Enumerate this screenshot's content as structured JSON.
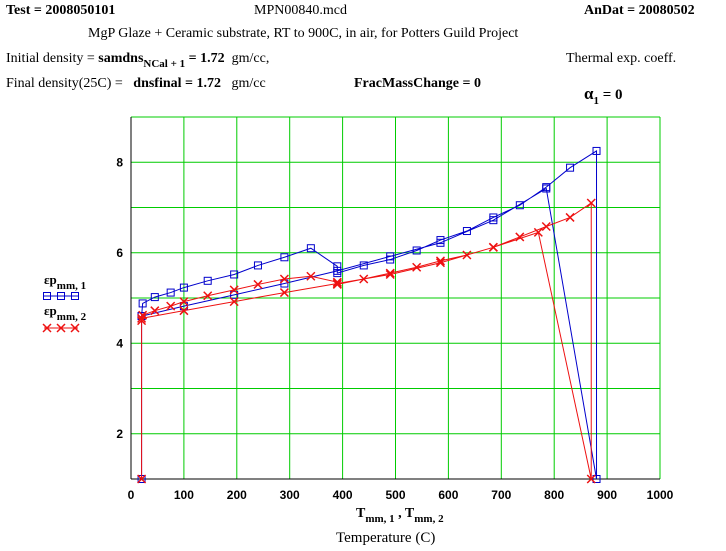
{
  "header": {
    "test_label": "Test",
    "test_value": "2008050101",
    "file_name": "MPN00840.mcd",
    "andat_label": "AnDat",
    "andat_value": "20080502",
    "description": "MgP Glaze + Ceramic substrate, RT to 900C, in  air, for Potters Guild Project",
    "initial_density_label": "Initial density = ",
    "initial_density_var": "samdns",
    "initial_density_sub": "NCal + 1",
    "initial_density_value": " = 1.72",
    "initial_density_unit": "gm/cc,",
    "final_density_label": "Final density(25C) =",
    "final_density_var": "dnsfinal = 1.72",
    "final_density_unit": "gm/cc",
    "frac_mass_change": "FracMassChange = 0",
    "thermal_exp_label": "Thermal exp. coeff.",
    "alpha_symbol": "α",
    "alpha_sub": "1",
    "alpha_value": "= 0"
  },
  "legend": {
    "series1_var": "εp",
    "series1_sub": "mm, 1",
    "series2_var": "εp",
    "series2_sub": "mm, 2"
  },
  "xaxis": {
    "var1": "T",
    "sub1": "mm, 1",
    "sep": " , ",
    "var2": "T",
    "sub2": "mm, 2",
    "title": "Temperature (C)"
  },
  "chart_data": {
    "type": "line",
    "xlim": [
      0,
      1000
    ],
    "ylim": [
      1,
      9
    ],
    "xticks": [
      0,
      100,
      200,
      300,
      400,
      500,
      600,
      700,
      800,
      900,
      1000
    ],
    "yticks": [
      2,
      4,
      6,
      8
    ],
    "grid": true,
    "colors": {
      "series1": "#0000cc",
      "series2": "#ee1111",
      "grid": "#00cc00"
    },
    "series": [
      {
        "marker": "square",
        "x": [
          20,
          20,
          22,
          45,
          75,
          100,
          145,
          195,
          240,
          290,
          340,
          390,
          390,
          440,
          490,
          540,
          585,
          635,
          685,
          735,
          785,
          830,
          880,
          880,
          785,
          685,
          585,
          490,
          390,
          290,
          195,
          100,
          20
        ],
        "y": [
          1.0,
          4.6,
          4.88,
          5.02,
          5.12,
          5.23,
          5.38,
          5.52,
          5.72,
          5.9,
          6.1,
          5.7,
          5.55,
          5.72,
          5.85,
          6.05,
          6.28,
          6.48,
          6.78,
          7.05,
          7.45,
          7.88,
          8.25,
          1.0,
          7.42,
          6.72,
          6.22,
          5.92,
          5.6,
          5.32,
          5.07,
          4.82,
          4.6
        ]
      },
      {
        "marker": "x",
        "x": [
          20,
          20,
          22,
          45,
          75,
          100,
          145,
          195,
          240,
          290,
          340,
          390,
          390,
          440,
          490,
          540,
          585,
          635,
          685,
          735,
          785,
          830,
          870,
          870,
          770,
          685,
          585,
          490,
          390,
          290,
          195,
          100,
          20
        ],
        "y": [
          1.0,
          4.5,
          4.62,
          4.72,
          4.82,
          4.92,
          5.05,
          5.18,
          5.3,
          5.42,
          5.48,
          5.35,
          5.3,
          5.42,
          5.55,
          5.68,
          5.82,
          5.95,
          6.12,
          6.35,
          6.58,
          6.78,
          7.1,
          1.0,
          6.45,
          6.12,
          5.78,
          5.52,
          5.32,
          5.12,
          4.92,
          4.72,
          4.55
        ]
      }
    ]
  }
}
